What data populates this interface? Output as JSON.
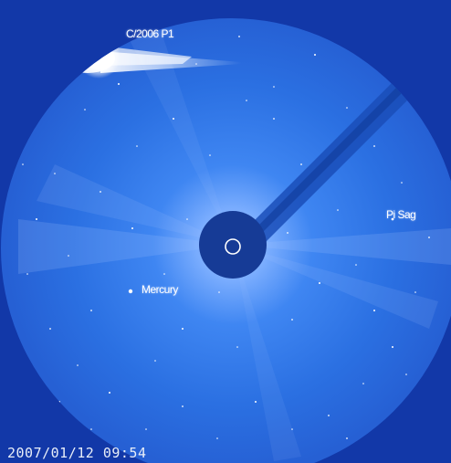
{
  "labels": {
    "comet": "C/2006 P1",
    "planet": "Pi Sag",
    "mercury": "Mercury"
  },
  "timestamp": "2007/01/12 09:54",
  "colors": {
    "background_blue": "#1238a8",
    "field_blue": "#2a6fe0",
    "occulter": "#163b96",
    "comet_head": "#ffffff"
  }
}
